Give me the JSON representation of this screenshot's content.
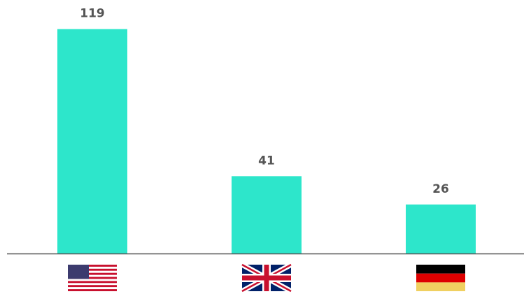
{
  "chart_data": {
    "type": "bar",
    "categories": [
      null,
      null,
      null
    ],
    "values": [
      119,
      41,
      26
    ],
    "color": "#2de6cb"
  }
}
